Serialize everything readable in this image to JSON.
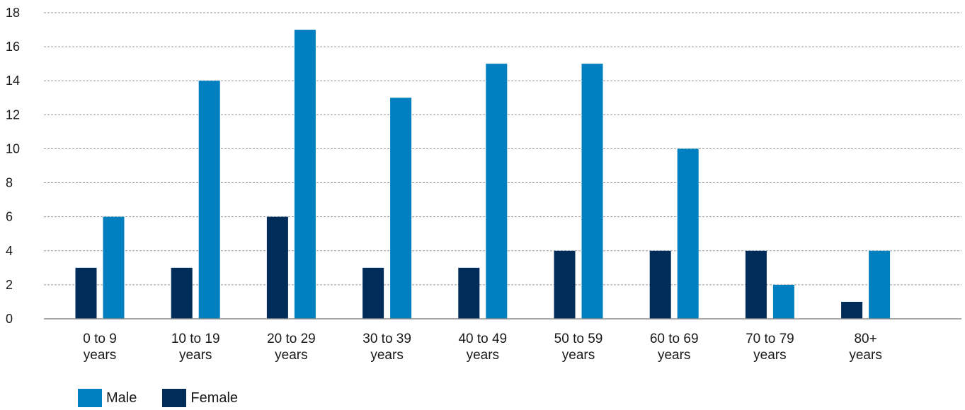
{
  "chart_data": {
    "type": "bar",
    "title": "",
    "xlabel": "",
    "ylabel": "",
    "categories": [
      [
        "0 to 9",
        "years"
      ],
      [
        "10 to 19",
        "years"
      ],
      [
        "20 to 29",
        "years"
      ],
      [
        "30 to 39",
        "years"
      ],
      [
        "40 to 49",
        "years"
      ],
      [
        "50 to 59",
        "years"
      ],
      [
        "60 to 69",
        "years"
      ],
      [
        "70 to 79",
        "years"
      ],
      [
        "80+",
        "years"
      ]
    ],
    "series": [
      {
        "name": "Female",
        "color": "#002c5a",
        "values": [
          3,
          3,
          6,
          3,
          3,
          4,
          4,
          4,
          1
        ]
      },
      {
        "name": "Male",
        "color": "#0080c0",
        "values": [
          6,
          14,
          17,
          13,
          15,
          15,
          10,
          2,
          4
        ]
      }
    ],
    "ylim": [
      0,
      18
    ],
    "yticks": [
      0,
      2,
      4,
      6,
      8,
      10,
      12,
      14,
      16,
      18
    ],
    "grid": true,
    "legend_position": "bottom-left",
    "legend": [
      {
        "label": "Male",
        "color": "#0080c0"
      },
      {
        "label": "Female",
        "color": "#002c5a"
      }
    ]
  }
}
